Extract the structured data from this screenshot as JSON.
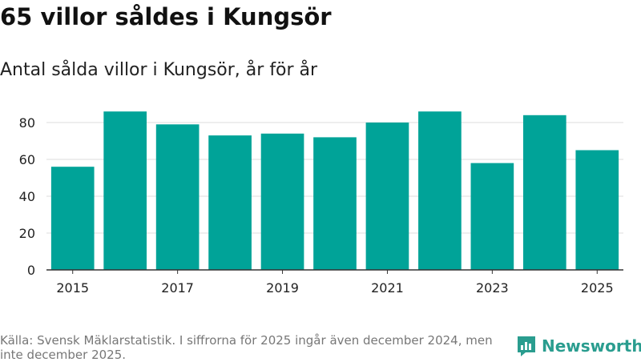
{
  "title": "65 villor såldes i Kungsör",
  "subtitle": "Antal sålda villor i Kungsör, år för år",
  "footer": {
    "source_text": "Källa: Svensk Mäklarstatistik. I siffrorna för 2025 ingår även december 2024, men inte december 2025."
  },
  "brand": {
    "name": "Newsworthy",
    "icon": "newsworthy-logo-icon",
    "color": "#2a9d8f"
  },
  "colors": {
    "bar": "#00a398",
    "grid": "#dddddd",
    "axis": "#333333",
    "tick_text": "#222222"
  },
  "chart_data": {
    "type": "bar",
    "title": "65 villor såldes i Kungsör",
    "subtitle": "Antal sålda villor i Kungsör, år för år",
    "xlabel": "",
    "ylabel": "",
    "categories": [
      "2015",
      "2016",
      "2017",
      "2018",
      "2019",
      "2020",
      "2021",
      "2022",
      "2023",
      "2024",
      "2025"
    ],
    "values": [
      56,
      86,
      79,
      73,
      74,
      72,
      80,
      86,
      58,
      84,
      65
    ],
    "x_tick_labels": [
      "2015",
      "2017",
      "2019",
      "2021",
      "2023",
      "2025"
    ],
    "y_ticks": [
      0,
      20,
      40,
      60,
      80
    ],
    "ylim": [
      0,
      90
    ],
    "grid": true
  }
}
